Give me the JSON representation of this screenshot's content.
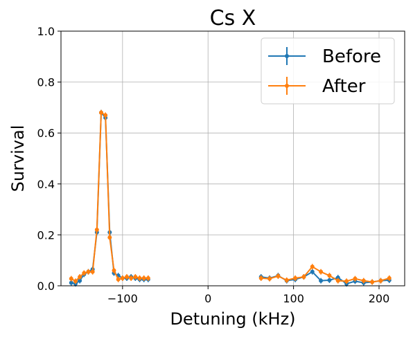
{
  "chart_data": {
    "type": "line",
    "title": "Cs X",
    "xlabel": "Detuning (kHz)",
    "ylabel": "Survival",
    "xlim": [
      -172,
      230
    ],
    "ylim": [
      0,
      1.0
    ],
    "x_ticks": [
      -100,
      0,
      100,
      200
    ],
    "x_tick_labels": [
      "−100",
      "0",
      "100",
      "200"
    ],
    "y_ticks": [
      0,
      0.2,
      0.4,
      0.6,
      0.8,
      1.0
    ],
    "y_tick_labels": [
      "0.0",
      "0.2",
      "0.4",
      "0.6",
      "0.8",
      "1.0"
    ],
    "grid": true,
    "legend_position": "top-right",
    "series": [
      {
        "name": "Before",
        "color": "#1f77b4",
        "segments": [
          {
            "x": [
              -160,
              -155,
              -150,
              -145,
              -140,
              -135,
              -130,
              -125,
              -120,
              -115,
              -110,
              -105,
              -100,
              -95,
              -90,
              -85,
              -80,
              -75,
              -70
            ],
            "y": [
              0.012,
              0.008,
              0.02,
              0.045,
              0.055,
              0.065,
              0.21,
              0.68,
              0.66,
              0.21,
              0.05,
              0.04,
              0.03,
              0.03,
              0.035,
              0.03,
              0.025,
              0.025,
              0.025
            ]
          },
          {
            "x": [
              62,
              72,
              82,
              92,
              102,
              112,
              122,
              132,
              142,
              152,
              162,
              172,
              182,
              192,
              202,
              212
            ],
            "y": [
              0.035,
              0.03,
              0.04,
              0.02,
              0.025,
              0.035,
              0.055,
              0.02,
              0.022,
              0.032,
              0.008,
              0.018,
              0.012,
              0.015,
              0.02,
              0.022
            ]
          }
        ]
      },
      {
        "name": "After",
        "color": "#ff7f0e",
        "segments": [
          {
            "x": [
              -160,
              -155,
              -150,
              -145,
              -140,
              -135,
              -130,
              -125,
              -120,
              -115,
              -110,
              -105,
              -100,
              -95,
              -90,
              -85,
              -80,
              -75,
              -70
            ],
            "y": [
              0.028,
              0.018,
              0.035,
              0.05,
              0.055,
              0.055,
              0.22,
              0.68,
              0.67,
              0.19,
              0.06,
              0.025,
              0.03,
              0.035,
              0.03,
              0.035,
              0.03,
              0.03,
              0.03
            ]
          },
          {
            "x": [
              62,
              72,
              82,
              92,
              102,
              112,
              122,
              132,
              142,
              152,
              162,
              172,
              182,
              192,
              202,
              212
            ],
            "y": [
              0.03,
              0.028,
              0.038,
              0.022,
              0.03,
              0.035,
              0.075,
              0.055,
              0.04,
              0.02,
              0.018,
              0.028,
              0.02,
              0.015,
              0.02,
              0.03
            ]
          }
        ]
      }
    ]
  }
}
